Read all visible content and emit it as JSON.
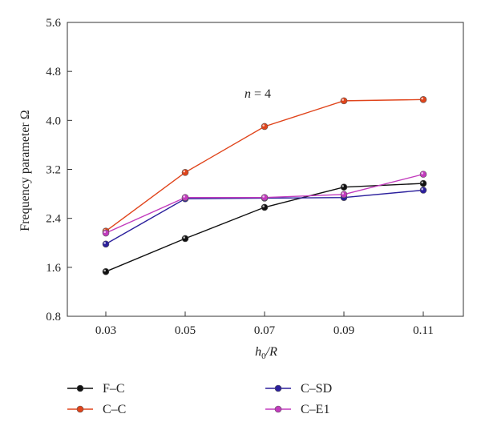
{
  "chart_data": {
    "type": "line",
    "x": [
      "0.03",
      "0.05",
      "0.07",
      "0.09",
      "0.11"
    ],
    "xlabel_main": "h",
    "xlabel_sub": "0",
    "xlabel_tail": "/R",
    "ylabel": "Frequency parameter Ω",
    "ylim": [
      0.8,
      5.6
    ],
    "yticks": [
      "0.8",
      "1.6",
      "2.4",
      "3.2",
      "4.0",
      "4.8",
      "5.6"
    ],
    "annotation": {
      "var": "n",
      "rest": " = 4"
    },
    "grid": false,
    "legend_position": "bottom",
    "series": [
      {
        "name": "F–C",
        "color": "#111111",
        "values": [
          1.53,
          2.07,
          2.58,
          2.91,
          2.97
        ]
      },
      {
        "name": "C–C",
        "color": "#e0441b",
        "values": [
          2.19,
          3.15,
          3.9,
          4.32,
          4.34
        ]
      },
      {
        "name": "C–SD",
        "color": "#2b1f9c",
        "values": [
          1.98,
          2.72,
          2.73,
          2.74,
          2.86
        ]
      },
      {
        "name": "C–E1",
        "color": "#c23bbd",
        "values": [
          2.16,
          2.74,
          2.74,
          2.79,
          3.12
        ]
      }
    ]
  }
}
